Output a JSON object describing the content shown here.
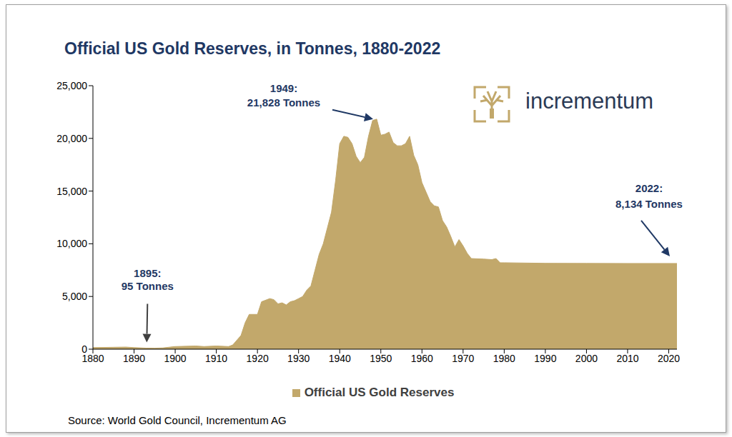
{
  "chart_data": {
    "type": "area",
    "title": "Official US Gold Reserves, in Tonnes, 1880-2022",
    "x": [
      1880,
      1885,
      1888,
      1890,
      1893,
      1895,
      1897,
      1900,
      1905,
      1907,
      1910,
      1913,
      1914,
      1916,
      1917,
      1918,
      1920,
      1921,
      1923,
      1924,
      1925,
      1926,
      1927,
      1928,
      1929,
      1930,
      1931,
      1932,
      1933,
      1934,
      1935,
      1936,
      1937,
      1938,
      1939,
      1940,
      1941,
      1942,
      1943,
      1944,
      1945,
      1946,
      1947,
      1948,
      1949,
      1950,
      1951,
      1952,
      1953,
      1954,
      1955,
      1956,
      1957,
      1958,
      1959,
      1960,
      1961,
      1962,
      1963,
      1964,
      1965,
      1966,
      1967,
      1968,
      1969,
      1970,
      1971,
      1972,
      1975,
      1977,
      1978,
      1979,
      1980,
      1990,
      2000,
      2010,
      2022
    ],
    "series": [
      {
        "name": "Official US Gold Reserves",
        "color": "#c2a86b",
        "values": [
          150,
          180,
          200,
          150,
          100,
          95,
          120,
          250,
          300,
          250,
          300,
          250,
          400,
          1300,
          2500,
          3300,
          3300,
          4500,
          4800,
          4700,
          4300,
          4400,
          4200,
          4500,
          4600,
          4800,
          5000,
          5600,
          6000,
          7500,
          9000,
          10000,
          11500,
          13000,
          16000,
          19500,
          20200,
          20100,
          19500,
          18300,
          17700,
          18200,
          20200,
          21700,
          21828,
          20300,
          20400,
          20600,
          19600,
          19300,
          19300,
          19500,
          20200,
          18400,
          17500,
          15800,
          14900,
          14000,
          13600,
          13500,
          12200,
          11600,
          10700,
          9700,
          10400,
          9800,
          9100,
          8600,
          8550,
          8500,
          8600,
          8200,
          8200,
          8150,
          8140,
          8134,
          8134
        ]
      }
    ],
    "xlim": [
      1880,
      2022
    ],
    "xticks": [
      1880,
      1890,
      1900,
      1910,
      1920,
      1930,
      1940,
      1950,
      1960,
      1970,
      1980,
      1990,
      2000,
      2010,
      2020
    ],
    "ylim": [
      0,
      25000
    ],
    "yticks": [
      0,
      {
        "value": 5000,
        "label": "5,000"
      },
      {
        "value": 10000,
        "label": "10,000"
      },
      {
        "value": 15000,
        "label": "15,000"
      },
      {
        "value": 20000,
        "label": "20,000"
      },
      {
        "value": 25000,
        "label": "25,000"
      }
    ],
    "grid": false,
    "legend": "bottom",
    "annotations": [
      {
        "x": 1895,
        "y": 95,
        "text": [
          "1895:",
          "95 Tonnes"
        ]
      },
      {
        "x": 1949,
        "y": 21828,
        "text": [
          "1949:",
          "21,828 Tonnes"
        ]
      },
      {
        "x": 2022,
        "y": 8134,
        "text": [
          "2022:",
          "8,134 Tonnes"
        ]
      }
    ],
    "logo_text": "incrementum",
    "source": "Source: World Gold Council, Incrementum AG"
  }
}
